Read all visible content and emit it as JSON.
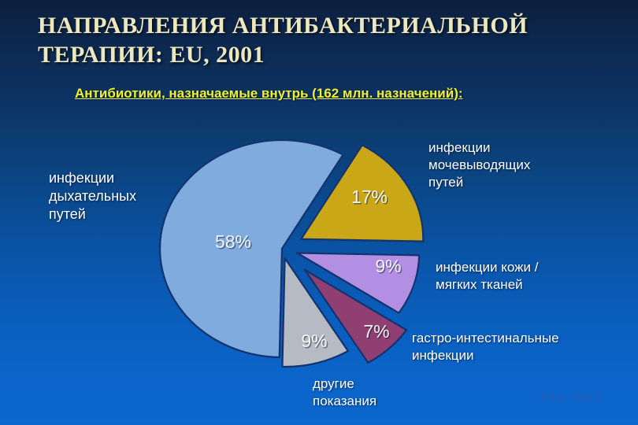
{
  "slide": {
    "title": "НАПРАВЛЕНИЯ АНТИБАКТЕРИАЛЬНОЙ\nТЕРАПИИ: EU, 2001",
    "subtitle": "Антибиотики, назначаемые внутрь (162 млн. назначений):",
    "credit": "IMS, 2002"
  },
  "colors": {
    "title_text": "#ece7bd",
    "subtitle_text": "#f0f032",
    "category_label_text": "#ffffff",
    "percent_label_text": "#f0f4f2",
    "slice_stroke": "#143470",
    "credit_text": "#2e5cb0",
    "background_top": "#0d2345",
    "background_bottom": "#0b67cd"
  },
  "chart_data": {
    "type": "pie",
    "title": "Антибиотики, назначаемые внутрь (162 млн. назначений)",
    "units": "%",
    "total_label": "162 млн. назначений",
    "start_angle_deg": 30,
    "direction": "clockwise",
    "legend_position": "around-slices",
    "slices": [
      {
        "label": "инфекции\nмочевыводящих\nпутей",
        "value": 17,
        "pct_text": "17%",
        "color": "#c9a717"
      },
      {
        "label": "инфекции кожи /\nмягких тканей",
        "value": 9,
        "pct_text": "9%",
        "color": "#b28fe2"
      },
      {
        "label": "гастро-интестинальные\nинфекции",
        "value": 7,
        "pct_text": "7%",
        "color": "#8f3f72"
      },
      {
        "label": "другие\nпоказания",
        "value": 9,
        "pct_text": "9%",
        "color": "#b5bac4"
      },
      {
        "label": "инфекции\nдыхательных\nпутей",
        "value": 58,
        "pct_text": "58%",
        "color": "#7fabdf"
      }
    ]
  }
}
